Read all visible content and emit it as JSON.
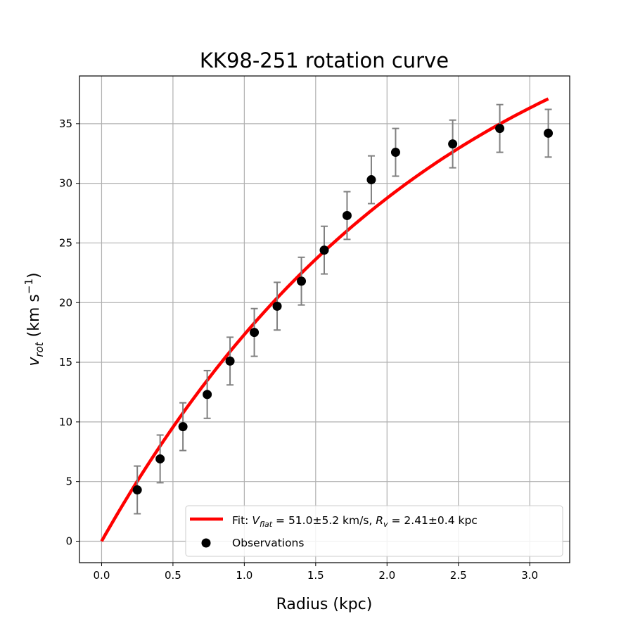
{
  "chart_data": {
    "type": "scatter",
    "title": "KK98-251 rotation curve",
    "xlabel": "Radius (kpc)",
    "ylabel_main": "v",
    "ylabel_sub": "rot",
    "ylabel_unit": " (km s",
    "ylabel_exp": "−1",
    "ylabel_close": ")",
    "xlim": [
      -0.155,
      3.28
    ],
    "ylim": [
      -1.8,
      39.0
    ],
    "xticks": [
      {
        "value": 0.0,
        "label": "0.0"
      },
      {
        "value": 0.5,
        "label": "0.5"
      },
      {
        "value": 1.0,
        "label": "1.0"
      },
      {
        "value": 1.5,
        "label": "1.5"
      },
      {
        "value": 2.0,
        "label": "2.0"
      },
      {
        "value": 2.5,
        "label": "2.5"
      },
      {
        "value": 3.0,
        "label": "3.0"
      }
    ],
    "yticks": [
      {
        "value": 0,
        "label": "0"
      },
      {
        "value": 5,
        "label": "5"
      },
      {
        "value": 10,
        "label": "10"
      },
      {
        "value": 15,
        "label": "15"
      },
      {
        "value": 20,
        "label": "20"
      },
      {
        "value": 25,
        "label": "25"
      },
      {
        "value": 30,
        "label": "30"
      },
      {
        "value": 35,
        "label": "35"
      }
    ],
    "grid": true,
    "legend_position": "lower-right",
    "series": [
      {
        "name": "Observations",
        "kind": "scatter",
        "color": "#000000",
        "error_color": "#808080",
        "points": [
          {
            "x": 0.25,
            "y": 4.3,
            "err": 2.0
          },
          {
            "x": 0.41,
            "y": 6.9,
            "err": 2.0
          },
          {
            "x": 0.57,
            "y": 9.6,
            "err": 2.0
          },
          {
            "x": 0.74,
            "y": 12.3,
            "err": 2.0
          },
          {
            "x": 0.9,
            "y": 15.1,
            "err": 2.0
          },
          {
            "x": 1.07,
            "y": 17.5,
            "err": 2.0
          },
          {
            "x": 1.23,
            "y": 19.7,
            "err": 2.0
          },
          {
            "x": 1.4,
            "y": 21.8,
            "err": 2.0
          },
          {
            "x": 1.56,
            "y": 24.4,
            "err": 2.0
          },
          {
            "x": 1.72,
            "y": 27.3,
            "err": 2.0
          },
          {
            "x": 1.89,
            "y": 30.3,
            "err": 2.0
          },
          {
            "x": 2.06,
            "y": 32.6,
            "err": 2.0
          },
          {
            "x": 2.46,
            "y": 33.3,
            "err": 2.0
          },
          {
            "x": 2.79,
            "y": 34.6,
            "err": 2.0
          },
          {
            "x": 3.13,
            "y": 34.2,
            "err": 2.0
          }
        ]
      },
      {
        "kind": "line",
        "color": "#ff0000",
        "legend_parts": {
          "prefix": "Fit: ",
          "v_main": "V",
          "v_sub": "flat",
          "v_value": " = 51.0±5.2 km/s, ",
          "r_main": "R",
          "r_sub": "v",
          "r_value": " = 2.41±0.4 kpc"
        },
        "model": {
          "vflat": 51.0,
          "rv": 2.41,
          "x_range": [
            0.0,
            3.13
          ]
        }
      }
    ]
  }
}
